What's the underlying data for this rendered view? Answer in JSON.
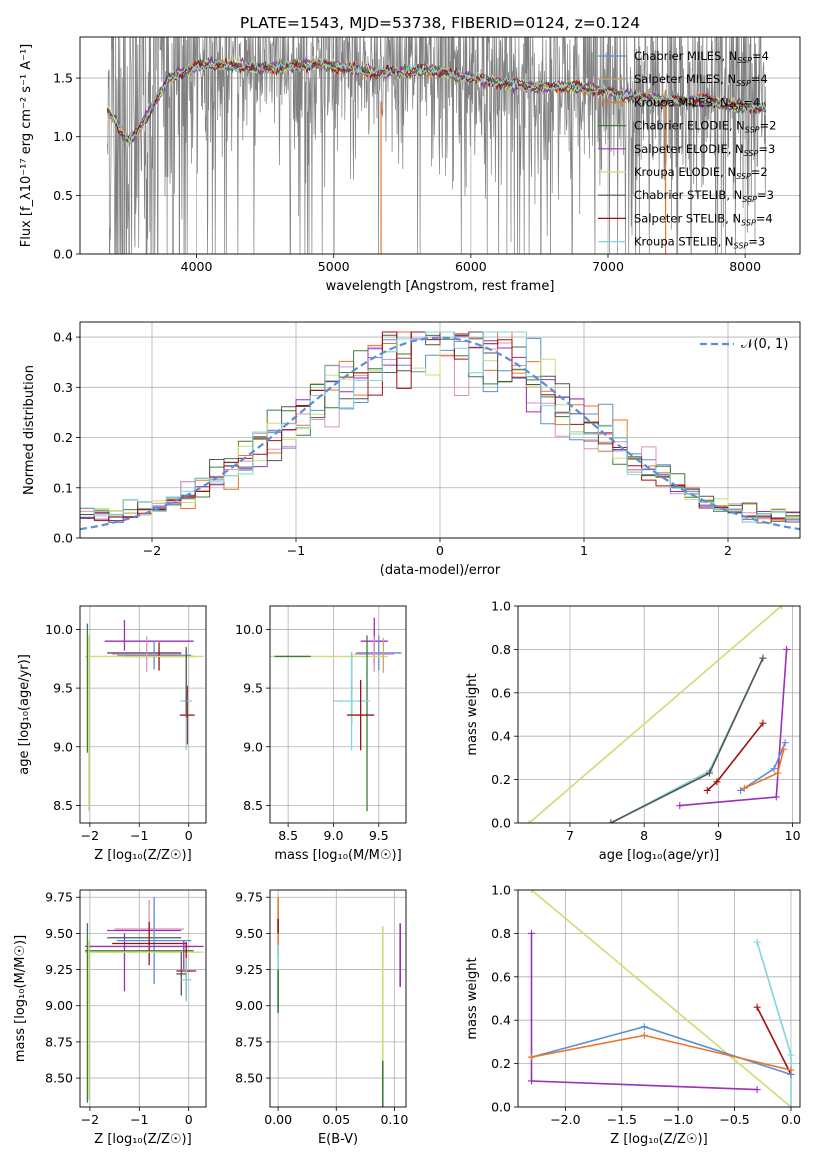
{
  "title": "PLATE=1543, MJD=53738, FIBERID=0124, z=0.124",
  "colors": {
    "grey": "#808080",
    "Chabrier MILES": "#5b8ed6",
    "Salpeter MILES": "#d4a76a",
    "Kroupa MILES": "#e8762b",
    "Chabrier ELODIE": "#3a7d3a",
    "Salpeter ELODIE": "#9b30b8",
    "Kroupa ELODIE": "#c8e070",
    "Chabrier STELIB": "#555555",
    "Salpeter STELIB": "#a01010",
    "Kroupa STELIB": "#7fd6dc",
    "pink": "#e090c0",
    "normal": "#5b8ed6"
  },
  "chart_data": [
    {
      "type": "line",
      "panel": "spectrum",
      "xlabel": "wavelength [Angstrom, rest frame]",
      "ylabel": "Flux [f_λ10⁻¹⁷ erg cm⁻² s⁻¹ A⁻¹]",
      "xlim": [
        3150,
        8400
      ],
      "ylim": [
        0,
        1.85
      ],
      "xticks": [
        "4000",
        "5000",
        "6000",
        "7000",
        "8000"
      ],
      "yticks": [
        "0.0",
        "0.5",
        "1.0",
        "1.5"
      ],
      "grid": true,
      "legend_position": "upper-right",
      "legend": [
        {
          "label": "Chabrier MILES, N",
          "sub": "SSP",
          "suffix": "=4"
        },
        {
          "label": "Salpeter MILES, N",
          "sub": "SSP",
          "suffix": "=4"
        },
        {
          "label": "Kroupa MILES, N",
          "sub": "SSP",
          "suffix": "=4"
        },
        {
          "label": "Chabrier ELODIE, N",
          "sub": "SSP",
          "suffix": "=2"
        },
        {
          "label": "Salpeter ELODIE, N",
          "sub": "SSP",
          "suffix": "=3"
        },
        {
          "label": "Kroupa ELODIE, N",
          "sub": "SSP",
          "suffix": "=2"
        },
        {
          "label": "Chabrier STELIB, N",
          "sub": "SSP",
          "suffix": "=3"
        },
        {
          "label": "Salpeter STELIB, N",
          "sub": "SSP",
          "suffix": "=4"
        },
        {
          "label": "Kroupa STELIB, N",
          "sub": "SSP",
          "suffix": "=3"
        }
      ],
      "model_continuum": {
        "x": [
          3350,
          3400,
          3450,
          3500,
          3600,
          3700,
          3800,
          3900,
          4000,
          4100,
          4300,
          4500,
          4700,
          4900,
          5100,
          5300,
          5500,
          5700,
          5900,
          6100,
          6300,
          6500,
          6700,
          6900,
          7100,
          7300,
          7500,
          7700,
          7900,
          8100,
          8150
        ],
        "y": [
          1.22,
          1.15,
          1.05,
          0.95,
          1.1,
          1.3,
          1.5,
          1.55,
          1.6,
          1.62,
          1.6,
          1.58,
          1.6,
          1.62,
          1.58,
          1.55,
          1.55,
          1.57,
          1.52,
          1.48,
          1.45,
          1.42,
          1.43,
          1.4,
          1.36,
          1.32,
          1.3,
          1.32,
          1.27,
          1.25,
          1.24
        ]
      }
    },
    {
      "type": "line",
      "panel": "residual-histogram",
      "xlabel": "(data-model)/error",
      "ylabel": "Normed distribution",
      "xlim": [
        -2.5,
        2.5
      ],
      "ylim": [
        0,
        0.43
      ],
      "xticks": [
        "−2",
        "−1",
        "0",
        "1",
        "2"
      ],
      "yticks": [
        "0.0",
        "0.1",
        "0.2",
        "0.3",
        "0.4"
      ],
      "grid": true,
      "legend_position": "upper-right",
      "legend_label": "𝒩(0, 1)",
      "bin_width": 0.1
    },
    {
      "type": "scatter",
      "panel": "age-vs-Z",
      "xlabel": "Z [log₁₀(Z/Z☉)]",
      "ylabel": "age  [log₁₀(age/yr)]",
      "xlim": [
        -2.2,
        0.35
      ],
      "ylim": [
        8.35,
        10.2
      ],
      "xticks": [
        "−2",
        "−1",
        "0"
      ],
      "yticks": [
        "8.5",
        "9.0",
        "9.5",
        "10.0"
      ],
      "grid": true,
      "series": [
        {
          "name": "Chabrier MILES",
          "x": -0.7,
          "y": 9.78,
          "xerr": 0.75,
          "yerr": 0.12
        },
        {
          "name": "Salpeter ELODIE",
          "x": -0.8,
          "y": 9.9,
          "xerr": 0.9,
          "yerr": 0.2
        },
        {
          "name": "Kroupa ELODIE",
          "x": -0.9,
          "y": 9.77,
          "xerr": 1.2,
          "yerr": 0.0
        },
        {
          "name": "Chabrier ELODIE",
          "x": -2.05,
          "y": 9.5,
          "xerr": 0.05,
          "yerr": 0.55
        },
        {
          "name": "Kroupa ELODIE vertical",
          "x": -2.0,
          "y": 9.2,
          "xerr": 0.05,
          "yerr": 0.75
        },
        {
          "name": "Salpeter STELIB",
          "x": -0.03,
          "y": 9.27,
          "xerr": 0.15,
          "yerr": 0.25
        },
        {
          "name": "Kroupa STELIB",
          "x": -0.05,
          "y": 9.39,
          "xerr": 0.12,
          "yerr": 0.42
        }
      ]
    },
    {
      "type": "scatter",
      "panel": "age-vs-mass",
      "xlabel": "mass [log₁₀(M/M☉)]",
      "ylabel": "",
      "xlim": [
        8.3,
        9.8
      ],
      "ylim": [
        8.35,
        10.2
      ],
      "xticks": [
        "8.5",
        "9.0",
        "9.5"
      ],
      "yticks": [
        "8.5",
        "9.0",
        "9.5",
        "10.0"
      ],
      "grid": true
    },
    {
      "type": "line",
      "panel": "cumulative-mass-weight-vs-age",
      "xlabel": "age  [log₁₀(age/yr)]",
      "ylabel": "mass weight",
      "xlim": [
        6.3,
        10.1
      ],
      "ylim": [
        0,
        1.0
      ],
      "xticks": [
        "7",
        "8",
        "9",
        "10"
      ],
      "yticks": [
        "0.0",
        "0.2",
        "0.4",
        "0.6",
        "0.8",
        "1.0"
      ],
      "grid": true,
      "series": [
        {
          "name": "Kroupa ELODIE",
          "x": [
            6.45,
            9.85
          ],
          "y": [
            0.0,
            1.0
          ]
        },
        {
          "name": "Kroupa STELIB",
          "x": [
            7.55,
            8.88,
            9.6
          ],
          "y": [
            0.0,
            0.24,
            0.76
          ]
        },
        {
          "name": "Chabrier STELIB",
          "x": [
            7.55,
            8.88,
            9.6
          ],
          "y": [
            0.0,
            0.23,
            0.76
          ]
        },
        {
          "name": "Salpeter STELIB",
          "x": [
            8.85,
            8.98,
            9.6
          ],
          "y": [
            0.15,
            0.19,
            0.46
          ]
        },
        {
          "name": "Salpeter ELODIE",
          "x": [
            8.48,
            9.78,
            9.92
          ],
          "y": [
            0.08,
            0.12,
            0.8
          ]
        },
        {
          "name": "Chabrier MILES",
          "x": [
            9.3,
            9.75,
            9.9
          ],
          "y": [
            0.15,
            0.25,
            0.37
          ]
        },
        {
          "name": "Kroupa MILES",
          "x": [
            9.35,
            9.8,
            9.88
          ],
          "y": [
            0.16,
            0.23,
            0.34
          ]
        }
      ]
    },
    {
      "type": "scatter",
      "panel": "mass-vs-Z",
      "xlabel": "Z [log₁₀(Z/Z☉)]",
      "ylabel": "mass [log₁₀(M/M☉)]",
      "xlim": [
        -2.2,
        0.35
      ],
      "ylim": [
        8.3,
        9.8
      ],
      "xticks": [
        "−2",
        "−1",
        "0"
      ],
      "yticks": [
        "8.50",
        "8.75",
        "9.00",
        "9.25",
        "9.50",
        "9.75"
      ],
      "grid": true
    },
    {
      "type": "scatter",
      "panel": "mass-vs-EBV",
      "xlabel": "E(B-V)",
      "ylabel": "",
      "xlim": [
        -0.007,
        0.11
      ],
      "ylim": [
        8.3,
        9.8
      ],
      "xticks": [
        "0.00",
        "0.05",
        "0.10"
      ],
      "yticks": [
        "8.50",
        "8.75",
        "9.00",
        "9.25",
        "9.50",
        "9.75"
      ],
      "grid": true
    },
    {
      "type": "line",
      "panel": "cumulative-mass-weight-vs-Z",
      "xlabel": "Z [log₁₀(Z/Z☉)]",
      "ylabel": "mass weight",
      "xlim": [
        -2.42,
        0.08
      ],
      "ylim": [
        0,
        1.0
      ],
      "xticks": [
        "−2.0",
        "−1.5",
        "−1.0",
        "−0.5",
        "0.0"
      ],
      "yticks": [
        "0.0",
        "0.2",
        "0.4",
        "0.6",
        "0.8",
        "1.0"
      ],
      "grid": true,
      "series": [
        {
          "name": "Kroupa ELODIE",
          "x": [
            -2.3,
            0.0
          ],
          "y": [
            1.0,
            0.0
          ]
        },
        {
          "name": "Salpeter ELODIE",
          "x": [
            -2.3,
            -2.3,
            -0.3,
            -2.3
          ],
          "y": [
            0.8,
            0.12,
            0.08,
            0.12
          ]
        },
        {
          "name": "Kroupa STELIB",
          "x": [
            -0.3,
            0.0,
            0.0
          ],
          "y": [
            0.76,
            0.24,
            0.0
          ]
        },
        {
          "name": "Salpeter STELIB",
          "x": [
            -0.3,
            0.0
          ],
          "y": [
            0.46,
            0.15
          ]
        },
        {
          "name": "Chabrier MILES",
          "x": [
            -2.3,
            -1.3,
            0.0
          ],
          "y": [
            0.23,
            0.37,
            0.15
          ]
        },
        {
          "name": "Kroupa MILES",
          "x": [
            -2.3,
            -1.3,
            0.0
          ],
          "y": [
            0.23,
            0.33,
            0.17
          ]
        }
      ]
    }
  ]
}
